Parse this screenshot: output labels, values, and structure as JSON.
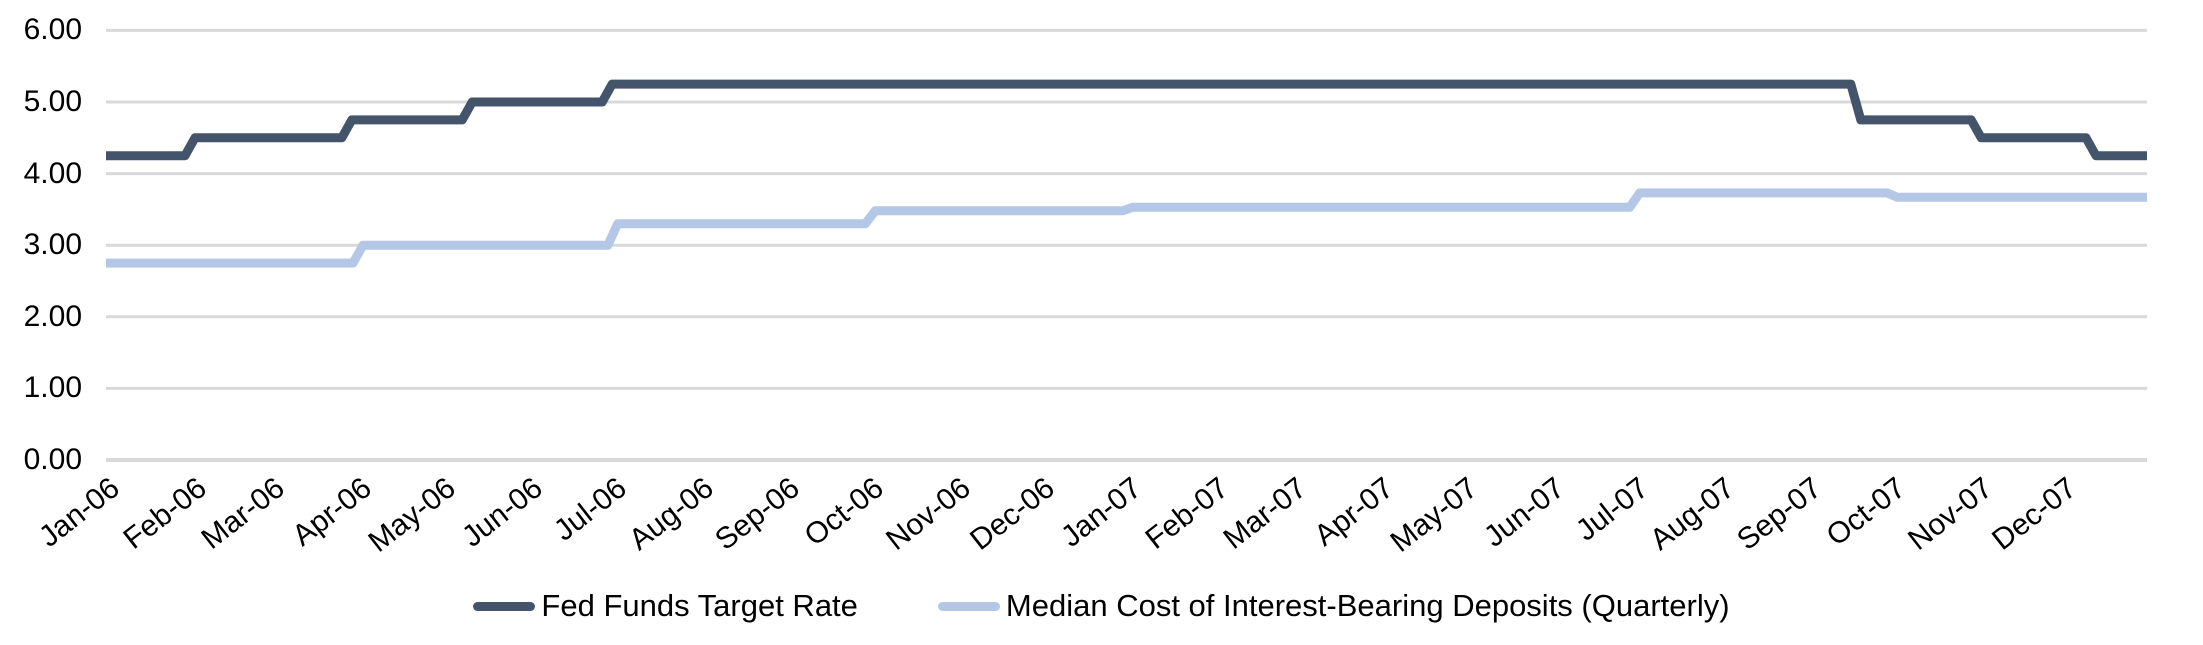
{
  "chart_data": {
    "type": "line",
    "subtype": "step",
    "title": "",
    "xlabel": "",
    "ylabel": "",
    "ylim": [
      0,
      6
    ],
    "grid": true,
    "legend_position": "bottom",
    "x_start_date": "2006-01-01",
    "x_end_date": "2007-12-31",
    "y_ticks": [
      {
        "label": "6.00",
        "value": 6
      },
      {
        "label": "5.00",
        "value": 5
      },
      {
        "label": "4.00",
        "value": 4
      },
      {
        "label": "3.00",
        "value": 3
      },
      {
        "label": "2.00",
        "value": 2
      },
      {
        "label": "1.00",
        "value": 1
      },
      {
        "label": "0.00",
        "value": 0
      }
    ],
    "x_ticks": [
      "Jan-06",
      "Feb-06",
      "Mar-06",
      "Apr-06",
      "May-06",
      "Jun-06",
      "Jul-06",
      "Aug-06",
      "Sep-06",
      "Oct-06",
      "Nov-06",
      "Dec-06",
      "Jan-07",
      "Feb-07",
      "Mar-07",
      "Apr-07",
      "May-07",
      "Jun-07",
      "Jul-07",
      "Aug-07",
      "Sep-07",
      "Oct-07",
      "Nov-07",
      "Dec-07"
    ],
    "series": [
      {
        "name": "Fed Funds Target Rate",
        "color": "#44546A",
        "granularity": "daily",
        "steps": [
          {
            "date": "2006-01-01",
            "value": 4.25
          },
          {
            "date": "2006-01-31",
            "value": 4.5
          },
          {
            "date": "2006-03-28",
            "value": 4.75
          },
          {
            "date": "2006-05-10",
            "value": 5.0
          },
          {
            "date": "2006-06-29",
            "value": 5.25
          },
          {
            "date": "2007-09-18",
            "value": 4.75
          },
          {
            "date": "2007-10-31",
            "value": 4.5
          },
          {
            "date": "2007-12-11",
            "value": 4.25
          }
        ]
      },
      {
        "name": "Median Cost of Interest-Bearing Deposits (Quarterly)",
        "color": "#B4C7E7",
        "granularity": "quarterly",
        "steps": [
          {
            "date": "2006-01-01",
            "value": 2.75
          },
          {
            "date": "2006-04-01",
            "value": 3.0
          },
          {
            "date": "2006-07-01",
            "value": 3.3
          },
          {
            "date": "2006-10-01",
            "value": 3.48
          },
          {
            "date": "2007-01-01",
            "value": 3.53
          },
          {
            "date": "2007-07-01",
            "value": 3.73
          },
          {
            "date": "2007-10-01",
            "value": 3.67
          }
        ]
      }
    ]
  },
  "legend": {
    "items": [
      {
        "label": "Fed Funds Target Rate",
        "color": "#44546A"
      },
      {
        "label": "Median Cost of Interest-Bearing Deposits (Quarterly)",
        "color": "#B4C7E7"
      }
    ]
  },
  "colors": {
    "gridline": "#D9D9D9",
    "axis_line": "#D9D9D9",
    "tick_text": "#000000",
    "background": "#FFFFFF"
  }
}
